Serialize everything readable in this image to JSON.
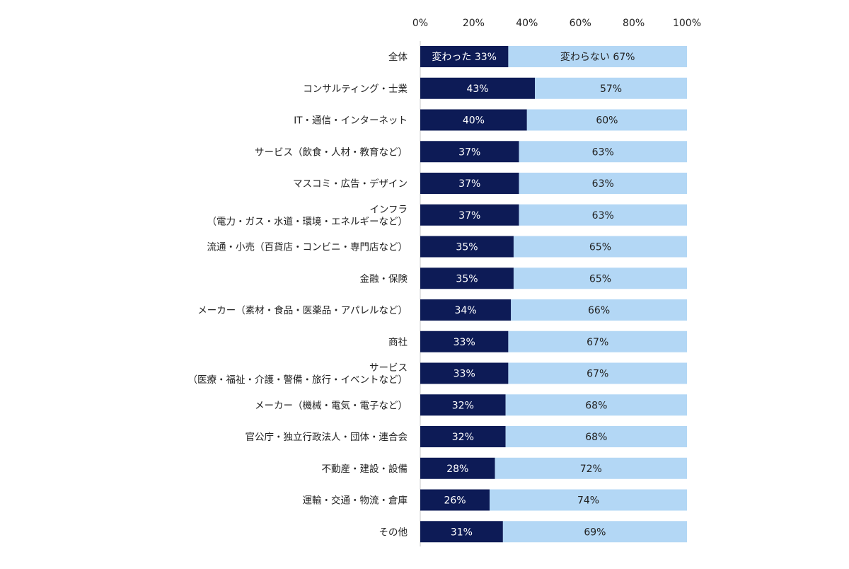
{
  "chart_data": {
    "type": "bar",
    "orientation": "horizontal",
    "stacked": "100%",
    "x_axis": {
      "min": 0,
      "max": 100,
      "ticks": [
        0,
        20,
        40,
        60,
        80,
        100
      ],
      "tick_labels": [
        "0%",
        "20%",
        "40%",
        "60%",
        "80%",
        "100%"
      ],
      "position": "top"
    },
    "grid": false,
    "legend": "none",
    "colors": {
      "changed": "#0d1b56",
      "unchanged": "#b3d7f5",
      "axis": "#c8c8c8",
      "text": "#222222"
    },
    "categories": [
      [
        "全体"
      ],
      [
        "コンサルティング・士業"
      ],
      [
        "IT・通信・インターネット"
      ],
      [
        "サービス（飲食・人材・教育など）"
      ],
      [
        "マスコミ・広告・デザイン"
      ],
      [
        "インフラ",
        "（電力・ガス・水道・環境・エネルギーなど）"
      ],
      [
        "流通・小売（百貨店・コンビニ・専門店など）"
      ],
      [
        "金融・保険"
      ],
      [
        "メーカー（素材・食品・医薬品・アパレルなど）"
      ],
      [
        "商社"
      ],
      [
        "サービス",
        "（医療・福祉・介護・警備・旅行・イベントなど）"
      ],
      [
        "メーカー（機械・電気・電子など）"
      ],
      [
        "官公庁・独立行政法人・団体・連合会"
      ],
      [
        "不動産・建設・設備"
      ],
      [
        "運輸・交通・物流・倉庫"
      ],
      [
        "その他"
      ]
    ],
    "series": [
      {
        "key": "changed",
        "values": [
          33,
          43,
          40,
          37,
          37,
          37,
          35,
          35,
          34,
          33,
          33,
          32,
          32,
          28,
          26,
          31
        ],
        "labels": [
          "変わった 33%",
          "43%",
          "40%",
          "37%",
          "37%",
          "37%",
          "35%",
          "35%",
          "34%",
          "33%",
          "33%",
          "32%",
          "32%",
          "28%",
          "26%",
          "31%"
        ]
      },
      {
        "key": "unchanged",
        "values": [
          67,
          57,
          60,
          63,
          63,
          63,
          65,
          65,
          66,
          67,
          67,
          68,
          68,
          72,
          74,
          69
        ],
        "labels": [
          "変わらない 67%",
          "57%",
          "60%",
          "63%",
          "63%",
          "63%",
          "65%",
          "65%",
          "66%",
          "67%",
          "67%",
          "68%",
          "68%",
          "72%",
          "74%",
          "69%"
        ]
      }
    ]
  }
}
